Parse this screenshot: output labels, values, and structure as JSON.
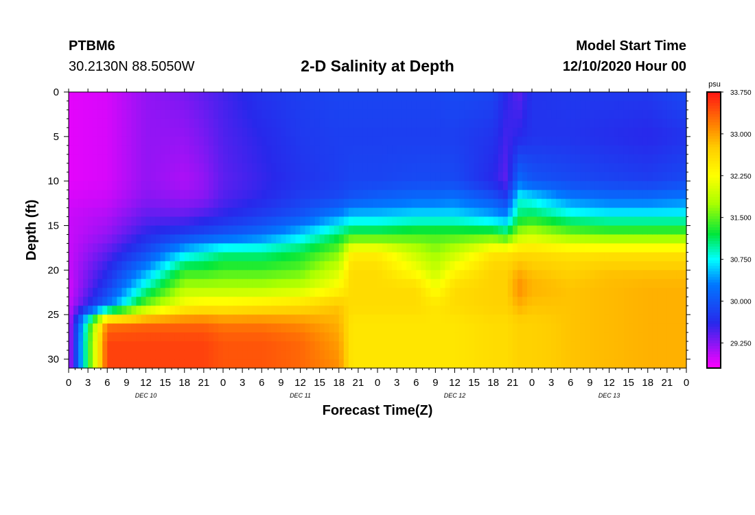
{
  "header": {
    "station": "PTBM6",
    "coordinates": "30.2130N 88.5050W",
    "title": "2-D Salinity at Depth",
    "start_label": "Model Start Time",
    "start_value": "12/10/2020 Hour 00"
  },
  "chart_data": {
    "type": "heatmap",
    "title": "2-D Salinity at Depth",
    "xlabel": "Forecast Time(Z)",
    "ylabel": "Depth (ft)",
    "x_tick_labels": [
      "0",
      "3",
      "6",
      "9",
      "12",
      "15",
      "18",
      "21",
      "0",
      "3",
      "6",
      "9",
      "12",
      "15",
      "18",
      "21",
      "0",
      "3",
      "6",
      "9",
      "12",
      "15",
      "18",
      "21",
      "0",
      "3",
      "6",
      "9",
      "12",
      "15",
      "18",
      "21",
      "0"
    ],
    "x_range_hours": [
      0,
      96
    ],
    "day_labels": [
      {
        "label": "DEC 10",
        "center_hour": 12
      },
      {
        "label": "DEC 11",
        "center_hour": 36
      },
      {
        "label": "DEC 12",
        "center_hour": 60
      },
      {
        "label": "DEC 13",
        "center_hour": 84
      }
    ],
    "y_ticks": [
      0,
      5,
      10,
      15,
      20,
      25,
      30
    ],
    "y_tick_labels": [
      "0",
      "5",
      "10",
      "15",
      "20",
      "25",
      "30"
    ],
    "ylim": [
      0,
      31
    ],
    "y_inverted": true,
    "colorbar": {
      "unit": "psu",
      "tick_labels": [
        "33.750",
        "33.000",
        "32.250",
        "31.500",
        "30.750",
        "30.000",
        "29.250"
      ],
      "range": [
        28.8,
        33.75
      ]
    },
    "salinity_field": {
      "description_hours": [
        0,
        6,
        12,
        18,
        21,
        24,
        30,
        36,
        42,
        44,
        48,
        54,
        57,
        60,
        66,
        68,
        70,
        72,
        78,
        84,
        90,
        96
      ],
      "depths_ft": [
        0,
        5,
        10,
        12,
        14,
        16,
        18,
        20,
        22,
        24,
        26,
        28,
        31
      ],
      "values": [
        [
          28.9,
          28.9,
          28.9,
          28.95,
          29.0,
          29.0,
          29.0,
          29.0,
          28.95,
          29.0,
          29.0,
          29.0,
          29.0
        ],
        [
          28.95,
          28.95,
          28.95,
          29.0,
          29.1,
          29.2,
          29.4,
          29.6,
          29.8,
          30.2,
          33.2,
          33.5,
          33.5
        ],
        [
          29.2,
          29.2,
          29.2,
          29.25,
          29.4,
          29.6,
          29.9,
          30.4,
          30.9,
          31.6,
          33.3,
          33.5,
          33.5
        ],
        [
          29.3,
          29.2,
          29.1,
          29.2,
          29.4,
          29.8,
          30.6,
          31.3,
          31.8,
          32.3,
          33.3,
          33.5,
          33.5
        ],
        [
          29.4,
          29.3,
          29.2,
          29.25,
          29.5,
          29.9,
          30.8,
          31.3,
          31.8,
          32.4,
          33.3,
          33.5,
          33.5
        ],
        [
          29.5,
          29.45,
          29.4,
          29.45,
          29.6,
          30.0,
          31.0,
          31.4,
          31.8,
          32.4,
          33.2,
          33.4,
          33.4
        ],
        [
          29.7,
          29.6,
          29.55,
          29.6,
          29.8,
          30.2,
          31.0,
          31.4,
          31.8,
          32.5,
          33.2,
          33.4,
          33.4
        ],
        [
          29.8,
          29.75,
          29.7,
          29.8,
          30.0,
          30.6,
          31.2,
          31.5,
          31.9,
          32.6,
          33.1,
          33.3,
          33.3
        ],
        [
          29.85,
          29.8,
          29.8,
          29.9,
          30.4,
          31.1,
          31.6,
          32.0,
          32.3,
          32.8,
          32.9,
          33.0,
          33.1
        ],
        [
          29.85,
          29.8,
          29.85,
          30.0,
          30.6,
          31.3,
          32.4,
          32.6,
          32.6,
          32.6,
          32.5,
          32.5,
          32.5
        ],
        [
          29.85,
          29.8,
          29.85,
          30.1,
          30.6,
          31.3,
          32.4,
          32.6,
          32.6,
          32.6,
          32.5,
          32.5,
          32.5
        ],
        [
          29.85,
          29.8,
          29.9,
          30.2,
          30.7,
          31.4,
          31.9,
          32.2,
          32.6,
          32.6,
          32.5,
          32.5,
          32.5
        ],
        [
          29.85,
          29.8,
          29.9,
          30.2,
          30.7,
          31.4,
          31.7,
          31.9,
          32.2,
          32.5,
          32.5,
          32.5,
          32.5
        ],
        [
          29.9,
          29.8,
          29.9,
          30.25,
          30.7,
          31.4,
          31.9,
          32.3,
          32.6,
          32.6,
          32.5,
          32.5,
          32.5
        ],
        [
          29.85,
          29.7,
          29.6,
          30.0,
          30.5,
          31.4,
          32.5,
          32.7,
          32.7,
          32.7,
          32.6,
          32.6,
          32.6
        ],
        [
          29.6,
          29.5,
          29.4,
          29.8,
          30.4,
          31.2,
          32.5,
          32.7,
          32.7,
          32.7,
          32.6,
          32.6,
          32.6
        ],
        [
          29.4,
          29.6,
          30.2,
          30.8,
          31.1,
          31.8,
          32.6,
          32.9,
          33.1,
          32.9,
          32.7,
          32.7,
          32.7
        ],
        [
          29.7,
          29.7,
          30.0,
          30.7,
          31.2,
          31.9,
          32.6,
          32.8,
          32.9,
          32.8,
          32.7,
          32.7,
          32.7
        ],
        [
          29.75,
          29.7,
          29.9,
          30.3,
          30.9,
          31.6,
          32.5,
          32.7,
          32.8,
          32.8,
          32.8,
          32.8,
          32.8
        ],
        [
          29.75,
          29.65,
          29.85,
          30.2,
          30.8,
          31.5,
          32.5,
          32.8,
          32.85,
          32.85,
          32.85,
          32.85,
          32.85
        ],
        [
          29.75,
          29.6,
          29.8,
          30.2,
          30.8,
          31.5,
          32.5,
          32.8,
          32.9,
          32.9,
          32.9,
          32.9,
          32.9
        ],
        [
          29.9,
          29.7,
          29.9,
          30.3,
          30.8,
          31.5,
          32.5,
          32.8,
          32.9,
          32.9,
          32.9,
          32.9,
          32.9
        ]
      ]
    }
  }
}
